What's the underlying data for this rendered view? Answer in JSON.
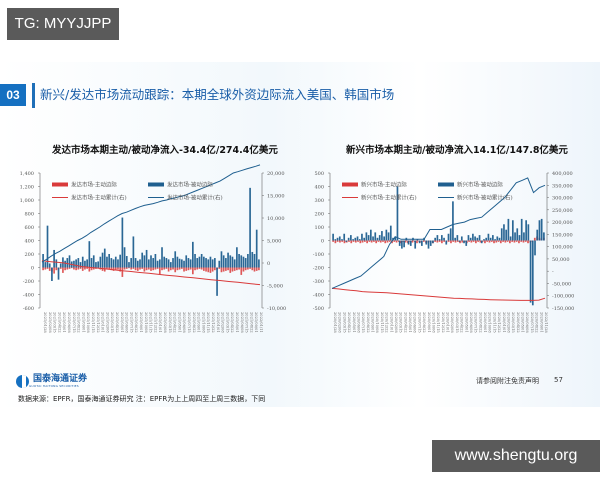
{
  "watermarks": {
    "top": "TG: MYYJJPP",
    "bottom": "www.shengtu.org"
  },
  "section": {
    "number": "03",
    "title": "新兴/发达市场流动跟踪：本期全球外资边际流入美国、韩国市场"
  },
  "footer": {
    "logo_name": "国泰海通证券",
    "logo_sub": "GUOTAI HAITONG SECURITIES",
    "source": "数据来源：EPFR，国泰海通证券研究 注：EPFR为上上周四至上周三数据，下同",
    "disclaimer": "请参阅附注免责声明",
    "page": "57"
  },
  "colors": {
    "active": "#d93a3a",
    "passive": "#1f5f8f",
    "accent": "#1570c1"
  },
  "chart_data": [
    {
      "type": "bar",
      "title": "发达市场本期主动/被动净流入-34.4亿/274.4亿美元",
      "legend": [
        "发达市场-主动边际",
        "发达市场-被动边际",
        "发达市场-主动累计(右)",
        "发达市场-被动累计(右)"
      ],
      "legend_position": "top",
      "grid": false,
      "xlabel": "",
      "ylabel": "",
      "left_ticks": [
        "1,400",
        "1,200",
        "1,000",
        "800",
        "600",
        "400",
        "200",
        "0",
        "-200",
        "-400",
        "-600"
      ],
      "right_ticks": [
        "20,000",
        "15,000",
        "10,000",
        "5,000",
        "0",
        "-5,000",
        "-10,000"
      ],
      "ylim": [
        -600,
        1400
      ],
      "y2lim": [
        -10000,
        20000
      ],
      "x_range_labels": [
        "2021/01/28",
        "2022/01/11"
      ],
      "series": [
        {
          "name": "发达市场-主动边际",
          "axis": "left",
          "kind": "bar",
          "values": [
            -40,
            -30,
            -20,
            -50,
            -60,
            -90,
            -40,
            -30,
            -20,
            -80,
            -40,
            -30,
            -20,
            -10,
            -30,
            -40,
            -30,
            -20,
            -50,
            -30,
            -20,
            -60,
            -40,
            -30,
            -20,
            -10,
            -30,
            -50,
            -60,
            -20,
            -30,
            -40,
            -50,
            -40,
            -30,
            -60,
            -140,
            -30,
            -20,
            -10,
            -30,
            -20,
            -40,
            -50,
            -30,
            -20,
            -60,
            -40,
            -30,
            -50,
            -40,
            -30,
            -20,
            -100,
            -40,
            -30,
            -20,
            -60,
            -40,
            -30,
            -70,
            -40,
            -30,
            -20,
            -60,
            -50,
            -40,
            -30,
            -100,
            -40,
            -30,
            -20,
            -30,
            -50,
            -60,
            -70,
            -80,
            -60,
            -40,
            -30,
            -20,
            -70,
            -60,
            -50,
            -40,
            -80,
            -60,
            -50,
            -40,
            -30,
            -110,
            -60,
            -40,
            -30,
            -20,
            -40,
            -60,
            -50,
            -40
          ]
        },
        {
          "name": "发达市场-被动边际",
          "axis": "left",
          "kind": "bar",
          "values": [
            200,
            80,
            620,
            60,
            -200,
            260,
            120,
            -180,
            60,
            150,
            100,
            140,
            180,
            90,
            100,
            120,
            140,
            80,
            160,
            100,
            120,
            390,
            140,
            180,
            80,
            90,
            160,
            220,
            280,
            160,
            200,
            140,
            120,
            160,
            120,
            190,
            740,
            300,
            170,
            80,
            140,
            460,
            140,
            100,
            120,
            220,
            180,
            260,
            120,
            180,
            140,
            200,
            100,
            120,
            300,
            160,
            140,
            120,
            80,
            140,
            240,
            160,
            130,
            120,
            100,
            180,
            140,
            120,
            380,
            200,
            140,
            160,
            200,
            160,
            140,
            120,
            160,
            120,
            140,
            -420,
            100,
            240,
            180,
            140,
            220,
            180,
            160,
            120,
            300,
            200,
            180,
            160,
            140,
            200,
            1180,
            230,
            200,
            560,
            120
          ]
        },
        {
          "name": "发达市场-主动累计(右)",
          "axis": "right",
          "kind": "line",
          "values": [
            500,
            400,
            300,
            200,
            100,
            0,
            -200,
            -400,
            -600,
            -800,
            -900,
            -1000,
            -1100,
            -1200,
            -1300,
            -1400,
            -1500,
            -1600,
            -1700,
            -1800,
            -1900,
            -2000,
            -2100,
            -2200,
            -2300,
            -2400,
            -2500,
            -2600,
            -2700,
            -2800,
            -2900,
            -3000,
            -3100,
            -3200,
            -3300,
            -3400,
            -3500,
            -3600,
            -3700,
            -3800,
            -3900,
            -4000,
            -4100,
            -4200,
            -4300,
            -4400,
            -4500,
            -4600,
            -4700,
            -4800
          ]
        },
        {
          "name": "发达市场-被动累计(右)",
          "axis": "right",
          "kind": "line",
          "values": [
            200,
            800,
            1500,
            2100,
            2600,
            3200,
            3800,
            4400,
            5000,
            5500,
            6100,
            6800,
            7400,
            8000,
            8700,
            9300,
            9900,
            10500,
            11000,
            11300,
            11700,
            12100,
            12500,
            12800,
            13000,
            13200,
            13500,
            13800,
            14000,
            14300,
            14500,
            14800,
            15000,
            15400,
            15800,
            16200,
            16600,
            17000,
            17400,
            17800,
            18200,
            18800,
            19400,
            20000,
            20300,
            20600,
            20900,
            21200,
            21500,
            21800
          ]
        }
      ]
    },
    {
      "type": "bar",
      "title": "新兴市场本期主动/被动净流入14.1亿/147.8亿美元",
      "legend": [
        "新兴市场-主动边际",
        "新兴市场-被动边际",
        "新兴市场-主动累计(右)",
        "新兴市场-被动累计(右)"
      ],
      "legend_position": "top",
      "grid": false,
      "xlabel": "",
      "ylabel": "",
      "left_ticks": [
        "500",
        "400",
        "300",
        "200",
        "100",
        "0",
        "-100",
        "-200",
        "-300",
        "-400",
        "-500"
      ],
      "right_ticks": [
        "400,000",
        "350,000",
        "300,000",
        "250,000",
        "200,000",
        "150,000",
        "100,000",
        "50,000",
        "-",
        "-50,000",
        "-100,000",
        "-150,000"
      ],
      "ylim": [
        -500,
        500
      ],
      "y2lim": [
        -150000,
        400000
      ],
      "x_range_labels": [
        "2020/01/28",
        "2022/11/28"
      ],
      "series": [
        {
          "name": "新兴市场-主动边际",
          "axis": "left",
          "kind": "bar",
          "values": [
            -10,
            -20,
            -10,
            -15,
            -10,
            -20,
            -15,
            -10,
            -20,
            -10,
            -15,
            -10,
            -20,
            -15,
            -10,
            -20,
            -10,
            -15,
            -10,
            -20,
            -10,
            -15,
            -10,
            -20,
            -15,
            -10,
            -20,
            -10,
            -15,
            -10,
            -20,
            -10,
            -15,
            -20,
            -10,
            -15,
            -10,
            -20,
            -10,
            -15,
            -10,
            -20,
            -15,
            -10,
            -20,
            -10,
            -15,
            -10,
            -20,
            -10,
            -15,
            -10,
            -20,
            -10,
            -15,
            -10,
            -20,
            -15,
            -10,
            -20,
            -10,
            -15,
            -10,
            -20,
            -10,
            -15,
            -10,
            -20,
            -10,
            -15,
            -10,
            -20,
            -15,
            -10,
            -20,
            -10,
            -15,
            -10,
            -20,
            -10,
            -15,
            -10,
            -20,
            -10,
            -15,
            -10,
            -20,
            -15,
            -10,
            20,
            30,
            20,
            15,
            20
          ]
        },
        {
          "name": "新兴市场-被动边际",
          "axis": "left",
          "kind": "bar",
          "values": [
            50,
            10,
            20,
            30,
            10,
            50,
            -10,
            20,
            40,
            10,
            20,
            30,
            10,
            50,
            20,
            60,
            40,
            80,
            30,
            60,
            20,
            40,
            70,
            30,
            80,
            60,
            110,
            20,
            30,
            400,
            -40,
            -60,
            -50,
            20,
            -30,
            -40,
            20,
            -60,
            10,
            -20,
            -40,
            20,
            -30,
            -60,
            -40,
            -20,
            20,
            40,
            10,
            40,
            20,
            -30,
            50,
            90,
            290,
            20,
            40,
            -10,
            30,
            -20,
            -40,
            40,
            20,
            50,
            30,
            20,
            40,
            -20,
            10,
            20,
            50,
            20,
            40,
            10,
            30,
            20,
            90,
            120,
            80,
            160,
            30,
            150,
            60,
            90,
            40,
            160,
            60,
            150,
            120,
            -460,
            -480,
            -110,
            80,
            150,
            160,
            60
          ]
        },
        {
          "name": "新兴市场-主动累计(右)",
          "axis": "right",
          "kind": "line",
          "values": [
            -70000,
            -72000,
            -75000,
            -78000,
            -80000,
            -83000,
            -85000,
            -86000,
            -87000,
            -88000,
            -90000,
            -92000,
            -94000,
            -96000,
            -98000,
            -100000,
            -102000,
            -104000,
            -106000,
            -108000,
            -110000,
            -111000,
            -112000,
            -113000,
            -114000,
            -115000,
            -116000,
            -117000,
            -117500,
            -118000,
            -118500,
            -119000,
            -119000,
            -119000,
            -118000,
            -110000
          ]
        },
        {
          "name": "新兴市场-被动累计(右)",
          "axis": "right",
          "kind": "line",
          "values": [
            -70000,
            -60000,
            -50000,
            -40000,
            -30000,
            -20000,
            0,
            20000,
            40000,
            60000,
            110000,
            140000,
            130000,
            130000,
            130000,
            130000,
            130000,
            170000,
            170000,
            170000,
            180000,
            190000,
            195000,
            200000,
            210000,
            215000,
            220000,
            240000,
            260000,
            280000,
            300000,
            330000,
            360000,
            370000,
            380000,
            320000,
            340000,
            350000
          ]
        }
      ]
    }
  ]
}
